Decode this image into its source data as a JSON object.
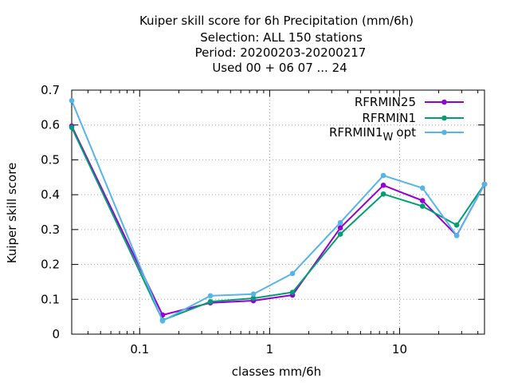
{
  "chart_data": {
    "type": "line",
    "title_lines": [
      "Kuiper skill score  for 6h Precipitation (mm/6h)",
      "Selection: ALL    150 stations",
      "Period: 20200203-20200217",
      "Used  00 + 06 07 ... 24"
    ],
    "xlabel": "classes mm/6h",
    "ylabel": "Kuiper skill score",
    "x_scale": "log",
    "xlim": [
      0.03,
      45
    ],
    "ylim": [
      0,
      0.7
    ],
    "x_ticks": [
      {
        "value": 0.1,
        "label": "0.1"
      },
      {
        "value": 1,
        "label": "1"
      },
      {
        "value": 10,
        "label": "10"
      }
    ],
    "y_ticks": [
      {
        "value": 0,
        "label": "0"
      },
      {
        "value": 0.1,
        "label": "0.1"
      },
      {
        "value": 0.2,
        "label": "0.2"
      },
      {
        "value": 0.3,
        "label": "0.3"
      },
      {
        "value": 0.4,
        "label": "0.4"
      },
      {
        "value": 0.5,
        "label": "0.5"
      },
      {
        "value": 0.6,
        "label": "0.6"
      },
      {
        "value": 0.7,
        "label": "0.7"
      }
    ],
    "grid": true,
    "legend_position": "top-right",
    "x": [
      0.03,
      0.15,
      0.35,
      0.75,
      1.5,
      3.5,
      7.5,
      15,
      27.5,
      45
    ],
    "series": [
      {
        "name": "RFRMIN25",
        "name_parts": [
          "RFRMIN25"
        ],
        "color": "#9400d3",
        "values": [
          0.597,
          0.055,
          0.09,
          0.096,
          0.112,
          0.305,
          0.427,
          0.383,
          0.283,
          0.43
        ]
      },
      {
        "name": "RFRMIN1",
        "name_parts": [
          "RFRMIN1"
        ],
        "color": "#009e73",
        "values": [
          0.593,
          0.04,
          0.093,
          0.103,
          0.12,
          0.287,
          0.402,
          0.367,
          0.313,
          0.43
        ]
      },
      {
        "name": "RFRMIN1 W opt",
        "name_parts": [
          "RFRMIN1",
          "W",
          "opt"
        ],
        "color": "#56b4e9",
        "values": [
          0.67,
          0.038,
          0.11,
          0.115,
          0.174,
          0.32,
          0.455,
          0.419,
          0.283,
          0.43
        ]
      }
    ]
  }
}
